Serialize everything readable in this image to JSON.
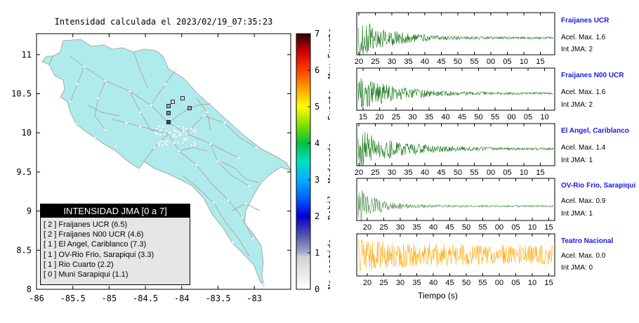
{
  "map": {
    "title": "Intensidad calculada el 2023/02/19_07:35:23",
    "lon_ticks": [
      "-86",
      "-85.5",
      "-85",
      "-84.5",
      "-84",
      "-83.5",
      "-83"
    ],
    "lat_ticks": [
      "8",
      "8.5",
      "9",
      "9.5",
      "10",
      "10.5",
      "11"
    ],
    "colors": {
      "land": "#b0ebeb",
      "roads": "#a9a9a9",
      "sea": "#ffffff"
    }
  },
  "colorbar": {
    "ticks": [
      "0",
      "1",
      "2",
      "3",
      "4",
      "5",
      "6",
      "7"
    ],
    "class_labels": [
      "No sentido",
      "Debil",
      "Moderado",
      "Fuerte",
      "Muy Fuerte"
    ]
  },
  "legend": {
    "title": "INTENSIDAD JMA [0 a 7]",
    "rows": [
      "[ 2 ]  Fraijanes UCR (6.5)",
      "[ 2 ]  Fraijanes N00 UCR (4.6)",
      "[ 1 ]  El Angel, Cariblanco (7.3)",
      "[ 1 ]  OV-Rio Frio, Sarapiqui (3.3)",
      "[ 1 ]  Rio Cuarto (2.2)",
      "[ 0 ]  Muni Sarapiqui (1.1)"
    ]
  },
  "traces_xlabel": "Tiempo (s)",
  "chart_data": [
    {
      "type": "line",
      "title": "Fraijanes UCR",
      "color": "#0a6e0a",
      "x_ticks": [
        "20",
        "25",
        "30",
        "35",
        "40",
        "45",
        "50",
        "55",
        "00",
        "05",
        "10",
        "15"
      ],
      "annotations": [
        "Acel. Max. 1.6",
        "Int JMA: 2"
      ],
      "peak_acceleration": 1.6,
      "jma_intensity": 2
    },
    {
      "type": "line",
      "title": "Fraijanes N00 UCR",
      "color": "#0a6e0a",
      "x_ticks": [
        "15",
        "20",
        "25",
        "30",
        "35",
        "40",
        "45",
        "50",
        "55",
        "00",
        "05",
        "10"
      ],
      "annotations": [
        "Acel. Max. 1.6",
        "Int JMA: 2"
      ],
      "peak_acceleration": 1.6,
      "jma_intensity": 2
    },
    {
      "type": "line",
      "title": "El Angel, Cariblanco",
      "color": "#0a6e0a",
      "x_ticks": [
        "20",
        "25",
        "30",
        "35",
        "40",
        "45",
        "50",
        "55",
        "00",
        "05",
        "10",
        "15"
      ],
      "annotations": [
        "Acel. Max. 1.4",
        "Int JMA: 1"
      ],
      "peak_acceleration": 1.4,
      "jma_intensity": 1
    },
    {
      "type": "line",
      "title": "OV-Rio Frio, Sarapiqui",
      "color": "#4a8a4a",
      "x_ticks": [
        "20",
        "25",
        "30",
        "35",
        "40",
        "45",
        "50",
        "55",
        "00",
        "05",
        "10",
        "15"
      ],
      "annotations": [
        "Acel. Max. 0.9",
        "Int JMA: 1"
      ],
      "peak_acceleration": 0.9,
      "jma_intensity": 1
    },
    {
      "type": "line",
      "title": "Teatro Nacional",
      "color": "#ffa500",
      "x_ticks": [
        "20",
        "25",
        "30",
        "35",
        "40",
        "45",
        "50",
        "55",
        "00",
        "05",
        "10",
        "15"
      ],
      "annotations": [
        "Acel. Max. 0.0",
        "Int JMA: 0"
      ],
      "peak_acceleration": 0.0,
      "jma_intensity": 0
    }
  ]
}
